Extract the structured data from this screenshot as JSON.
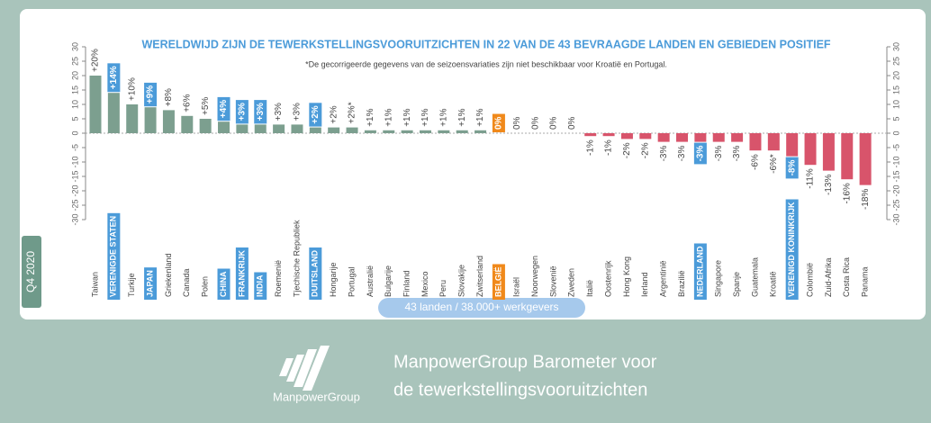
{
  "chart_data": {
    "type": "bar",
    "title": "WERELDWIJD ZIJN DE TEWERKSTELLINGSVOORUITZICHTEN IN 22 VAN DE 43 BEVRAAGDE LANDEN EN GEBIEDEN POSITIEF",
    "subtitle": "*De gecorrigeerde gegevens van de seizoensvariaties zijn niet beschikbaar voor Kroatië en Portugal.",
    "categories": [
      "Taiwan",
      "VERENIGDE STATEN",
      "Turkije",
      "JAPAN",
      "Griekenland",
      "Canada",
      "Polen",
      "CHINA",
      "FRANKRIJK",
      "INDIA",
      "Roemenië",
      "Tjechische Republiek",
      "DUITSLAND",
      "Hongarije",
      "Portugal",
      "Australië",
      "Bulgarije",
      "Finland",
      "Mexico",
      "Peru",
      "Slovakije",
      "Zwitserland",
      "BELGIË",
      "Israël",
      "Noorwegen",
      "Slovenië",
      "Zweden",
      "Italië",
      "Oostenrijk",
      "Hong Kong",
      "Ierland",
      "Argentinië",
      "Brazilië",
      "NEDERLAND",
      "Singapore",
      "Spanje",
      "Guatemala",
      "Kroatië",
      "VERENIGD KONINKRIJK",
      "Colombië",
      "Zuid-Afrika",
      "Costa Rica",
      "Panama"
    ],
    "values": [
      20,
      14,
      10,
      9,
      8,
      6,
      5,
      4,
      3,
      3,
      3,
      3,
      2,
      2,
      2,
      1,
      1,
      1,
      1,
      1,
      1,
      1,
      0,
      0,
      0,
      0,
      0,
      -1,
      -1,
      -2,
      -2,
      -3,
      -3,
      -3,
      -3,
      -3,
      -6,
      -6,
      -8,
      -11,
      -13,
      -16,
      -18
    ],
    "value_labels": [
      "+20%",
      "+14%",
      "+10%",
      "+9%",
      "+8%",
      "+6%",
      "+5%",
      "+4%",
      "+3%",
      "+3%",
      "+3%",
      "+3%",
      "+2%",
      "+2%",
      "+2%*",
      "+1%",
      "+1%",
      "+1%",
      "+1%",
      "+1%",
      "+1%",
      "+1%",
      "0%",
      "0%",
      "0%",
      "0%",
      "0%",
      "-1%",
      "-1%",
      "-2%",
      "-2%",
      "-3%",
      "-3%",
      "-3%",
      "-3%",
      "-3%",
      "-6%",
      "-6%*",
      "-8%",
      "-11%",
      "-13%",
      "-16%",
      "-18%"
    ],
    "label_colors": [
      null,
      "#4b9bd9",
      null,
      "#4b9bd9",
      null,
      null,
      null,
      "#4b9bd9",
      "#4b9bd9",
      "#4b9bd9",
      null,
      null,
      "#4b9bd9",
      null,
      null,
      null,
      null,
      null,
      null,
      null,
      null,
      null,
      "#f0891b",
      null,
      null,
      null,
      null,
      null,
      null,
      null,
      null,
      null,
      null,
      "#4b9bd9",
      null,
      null,
      null,
      null,
      "#4b9bd9",
      null,
      null,
      null,
      null
    ],
    "colors": {
      "positive": "#7c9f8f",
      "negative": "#d8546b"
    },
    "ylim": [
      -30,
      30
    ],
    "yticks": [
      30,
      25,
      20,
      15,
      10,
      5,
      0,
      -5,
      -10,
      -15,
      -20,
      -25,
      -30
    ],
    "badge": "43 landen / 38.000+ werkgevers",
    "tag": "Q4 2020"
  },
  "footer": {
    "logo": "ManpowerGroup",
    "line1": "ManpowerGroup Barometer voor",
    "line2": "de tewerkstellingsvooruitzichten"
  }
}
